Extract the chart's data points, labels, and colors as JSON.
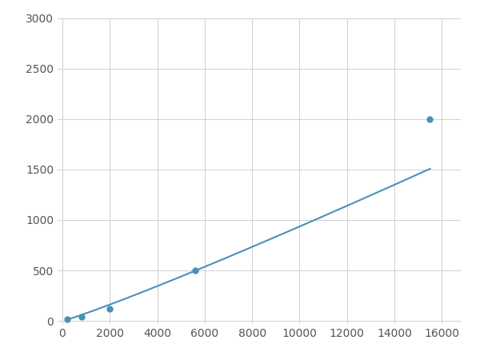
{
  "x_data": [
    200,
    800,
    2000,
    5600,
    15500
  ],
  "y_data": [
    20,
    40,
    120,
    500,
    2000
  ],
  "line_color": "#4a90b8",
  "marker_color": "#4a90b8",
  "marker_size": 5,
  "line_width": 1.5,
  "xlim": [
    -200,
    16800
  ],
  "ylim": [
    -30,
    3000
  ],
  "xticks": [
    0,
    2000,
    4000,
    6000,
    8000,
    10000,
    12000,
    14000,
    16000
  ],
  "yticks": [
    0,
    500,
    1000,
    1500,
    2000,
    2500,
    3000
  ],
  "grid_color": "#d0d0d0",
  "grid_linewidth": 0.7,
  "background_color": "#ffffff",
  "figsize": [
    6.0,
    4.5
  ],
  "dpi": 100
}
